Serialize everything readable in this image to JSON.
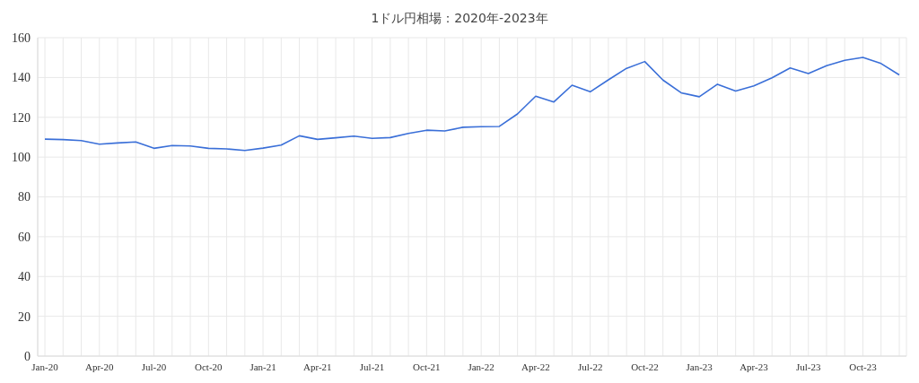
{
  "chart_data": {
    "type": "line",
    "title": "1ドル円相場：2020年-2023年",
    "categories": [
      "Jan-20",
      null,
      null,
      "Apr-20",
      null,
      null,
      "Jul-20",
      null,
      null,
      "Oct-20",
      null,
      null,
      "Jan-21",
      null,
      null,
      "Apr-21",
      null,
      null,
      "Jul-21",
      null,
      null,
      "Oct-21",
      null,
      null,
      "Jan-22",
      null,
      null,
      "Apr-22",
      null,
      null,
      "Jul-22",
      null,
      null,
      "Oct-22",
      null,
      null,
      "Jan-23",
      null,
      null,
      "Apr-23",
      null,
      null,
      "Jul-23",
      null,
      null,
      "Oct-23",
      null,
      null
    ],
    "series": [
      {
        "color": "#3a6fd8",
        "values": [
          109,
          108.8,
          108.3,
          106.5,
          107.1,
          107.6,
          104.4,
          105.8,
          105.6,
          104.4,
          104.1,
          103.3,
          104.5,
          106,
          110.7,
          108.9,
          109.7,
          110.5,
          109.4,
          109.8,
          111.9,
          113.5,
          113.1,
          115,
          115.3,
          115.4,
          121.7,
          130.6,
          127.7,
          136.1,
          132.8,
          138.8,
          144.6,
          148,
          138.7,
          132.3,
          130.3,
          136.6,
          133.2,
          135.8,
          139.8,
          144.8,
          142,
          145.9,
          148.6,
          150.1,
          147,
          141.3
        ]
      }
    ],
    "ylim": [
      0,
      160
    ],
    "yticks": [
      0,
      20,
      40,
      60,
      80,
      100,
      120,
      140,
      160
    ],
    "grid": true,
    "legend": false,
    "marker": "none",
    "line_style": "solid"
  }
}
